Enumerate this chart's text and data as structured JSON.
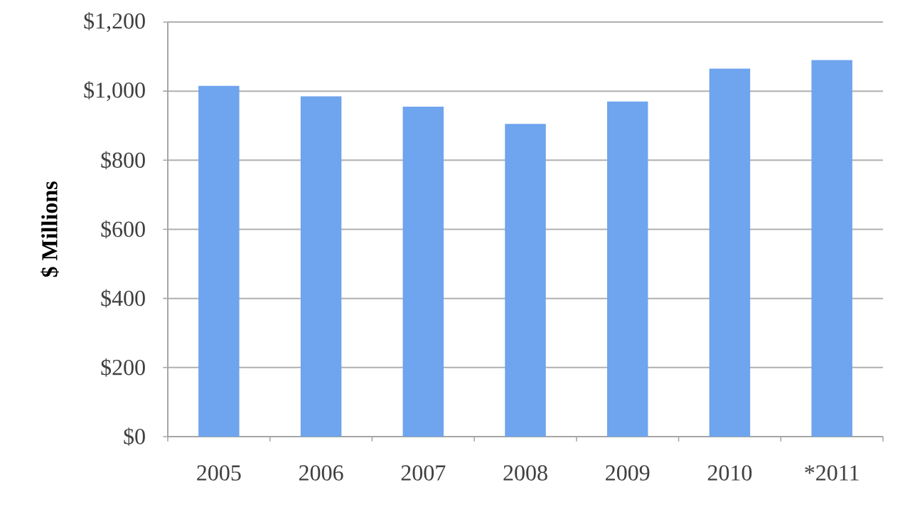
{
  "chart_data": {
    "type": "bar",
    "ylabel": "$ Millions",
    "categories": [
      "2005",
      "2006",
      "2007",
      "2008",
      "2009",
      "2010",
      "*2011"
    ],
    "values": [
      1015,
      985,
      955,
      905,
      970,
      1065,
      1090
    ],
    "color": "#6fa4ee",
    "ylim": [
      0,
      1200
    ],
    "yticks": [
      {
        "value": 0,
        "label": "$0"
      },
      {
        "value": 200,
        "label": "$200"
      },
      {
        "value": 400,
        "label": "$400"
      },
      {
        "value": 600,
        "label": "$600"
      },
      {
        "value": 800,
        "label": "$800"
      },
      {
        "value": 1000,
        "label": "$1,000"
      },
      {
        "value": 1200,
        "label": "$1,200"
      }
    ],
    "grid": "y"
  }
}
